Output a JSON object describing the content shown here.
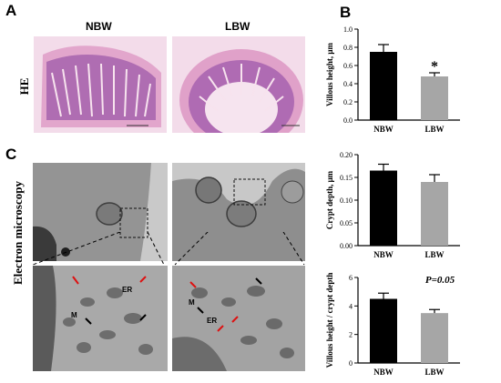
{
  "panels": {
    "A": "A",
    "B": "B",
    "C": "C"
  },
  "columns": {
    "left": "NBW",
    "right": "LBW"
  },
  "row_labels": {
    "he": "HE",
    "em": "Electron microscopy"
  },
  "em_labels": {
    "er": "ER",
    "m": "M"
  },
  "chart_data": [
    {
      "type": "bar",
      "categories": [
        "NBW",
        "LBW"
      ],
      "values": [
        0.75,
        0.48
      ],
      "errors": [
        0.08,
        0.04
      ],
      "ylabel": "Villous height, μm",
      "ylim": [
        0,
        1.0
      ],
      "yticks": [
        "0.0",
        "0.2",
        "0.4",
        "0.6",
        "0.8",
        "1.0"
      ],
      "yticks_values": [
        0,
        0.2,
        0.4,
        0.6,
        0.8,
        1.0
      ],
      "annotation": "*",
      "colors": [
        "#000000",
        "#a6a6a6"
      ]
    },
    {
      "type": "bar",
      "categories": [
        "NBW",
        "LBW"
      ],
      "values": [
        0.165,
        0.14
      ],
      "errors": [
        0.014,
        0.016
      ],
      "ylabel": "Crypt depth, μm",
      "ylim": [
        0,
        0.2
      ],
      "yticks": [
        "0.00",
        "0.05",
        "0.10",
        "0.15",
        "0.20"
      ],
      "yticks_values": [
        0,
        0.05,
        0.1,
        0.15,
        0.2
      ],
      "annotation": "",
      "colors": [
        "#000000",
        "#a6a6a6"
      ]
    },
    {
      "type": "bar",
      "categories": [
        "NBW",
        "LBW"
      ],
      "values": [
        4.5,
        3.5
      ],
      "errors": [
        0.4,
        0.25
      ],
      "ylabel": "Villous height / crypt depth",
      "ylim": [
        0,
        6
      ],
      "yticks": [
        "0",
        "2",
        "4",
        "6"
      ],
      "yticks_values": [
        0,
        2,
        4,
        6
      ],
      "annotation": "P=0.05",
      "colors": [
        "#000000",
        "#a6a6a6"
      ]
    }
  ]
}
